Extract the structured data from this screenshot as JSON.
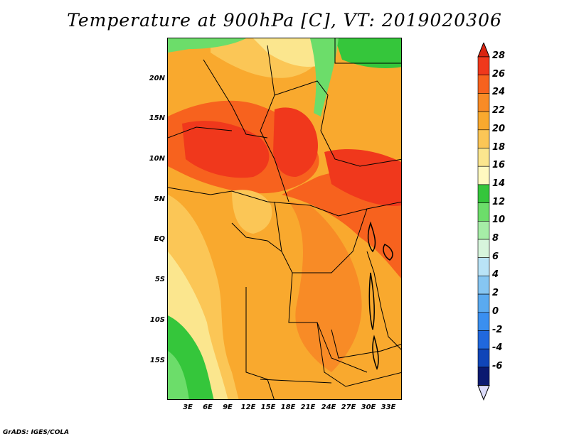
{
  "title": "Temperature at 900hPa [C], VT: 2019020306",
  "credit": "GrADS: IGES/COLA",
  "map": {
    "lat_labels": [
      "20N",
      "15N",
      "10N",
      "5N",
      "EQ",
      "5S",
      "10S",
      "15S"
    ],
    "lon_labels": [
      "3E",
      "6E",
      "9E",
      "12E",
      "15E",
      "18E",
      "21E",
      "24E",
      "27E",
      "30E",
      "33E"
    ]
  },
  "colorbar": {
    "labels": [
      "28",
      "26",
      "24",
      "22",
      "20",
      "18",
      "16",
      "14",
      "12",
      "10",
      "8",
      "6",
      "4",
      "2",
      "0",
      "-2",
      "-4",
      "-6"
    ],
    "colors": [
      "#f0381c",
      "#f7621e",
      "#f88b26",
      "#f9a92e",
      "#fbc656",
      "#fbe68e",
      "#fff9c0",
      "#35c63b",
      "#6cdd6a",
      "#a6eda7",
      "#d7f5dc",
      "#b9e3f7",
      "#86c6f2",
      "#5aaaf0",
      "#3a8ff0",
      "#2068dd",
      "#1045b8",
      "#0b1a70"
    ],
    "top_arrow_color": "#d92410",
    "bottom_arrow_color": "#dcdcfa"
  }
}
